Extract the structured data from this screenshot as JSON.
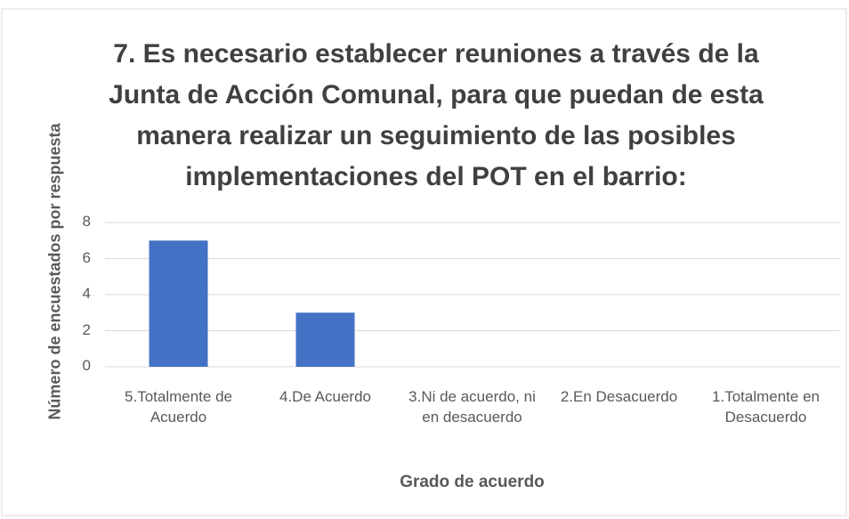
{
  "chart_data": {
    "type": "bar",
    "title": "7. Es necesario establecer reuniones a través de la Junta de Acción Comunal, para que puedan de esta manera realizar un seguimiento de las posibles implementaciones del POT en el barrio:",
    "x_label": "Grado de acuerdo",
    "y_label": "Número de encuestados por respuesta",
    "categories": [
      "5.Totalmente de Acuerdo",
      "4.De Acuerdo",
      "3.Ni de acuerdo, ni en desacuerdo",
      "2.En Desacuerdo",
      "1.Totalmente en Desacuerdo"
    ],
    "values": [
      7,
      3,
      0,
      0,
      0
    ],
    "color": "#4472c4",
    "ylim": [
      0,
      8
    ],
    "yticks": [
      0,
      2,
      4,
      6,
      8
    ],
    "grid": true
  }
}
